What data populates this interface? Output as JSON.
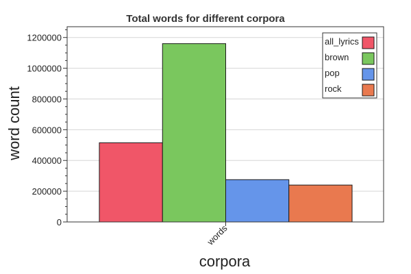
{
  "chart_data": {
    "type": "bar",
    "title": "Total words for different corpora",
    "xlabel": "corpora",
    "ylabel": "word count",
    "categories": [
      "words"
    ],
    "series": [
      {
        "name": "all_lyrics",
        "values": [
          515000
        ],
        "color": "#f05668"
      },
      {
        "name": "brown",
        "values": [
          1160000
        ],
        "color": "#7ac75e"
      },
      {
        "name": "pop",
        "values": [
          275000
        ],
        "color": "#6595ea"
      },
      {
        "name": "rock",
        "values": [
          240000
        ],
        "color": "#e9794f"
      }
    ],
    "ylim": [
      0,
      1270000
    ],
    "yticks": [
      "0",
      "200000",
      "400000",
      "600000",
      "800000",
      "1000000",
      "1200000"
    ],
    "grid": "horizontal",
    "legend_position": "top-right"
  }
}
